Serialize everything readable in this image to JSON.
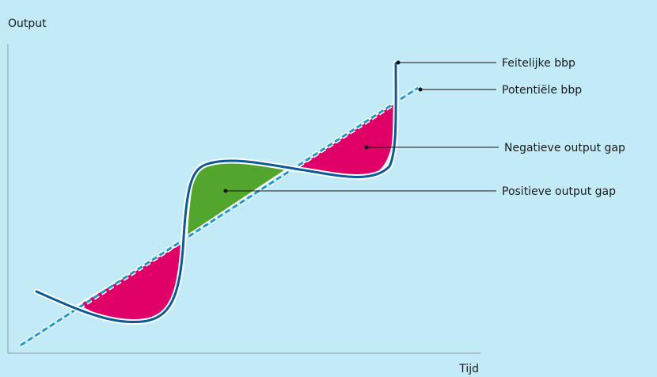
{
  "axes": {
    "y_label": "Output",
    "x_label": "Tijd"
  },
  "legend": {
    "actual_gdp": "Feitelijke bbp",
    "potential_gdp": "Potentiële bbp",
    "negative_gap": "Negatieve output gap",
    "positive_gap": "Positieve output gap"
  },
  "colors": {
    "background": "#c2ebf7",
    "actual_line": "#0a5a96",
    "potential_line": "#1f97cc",
    "negative_fill": "#df0068",
    "positive_fill": "#52a62e",
    "axis": "#8a9aa3",
    "leader": "#111111"
  }
}
